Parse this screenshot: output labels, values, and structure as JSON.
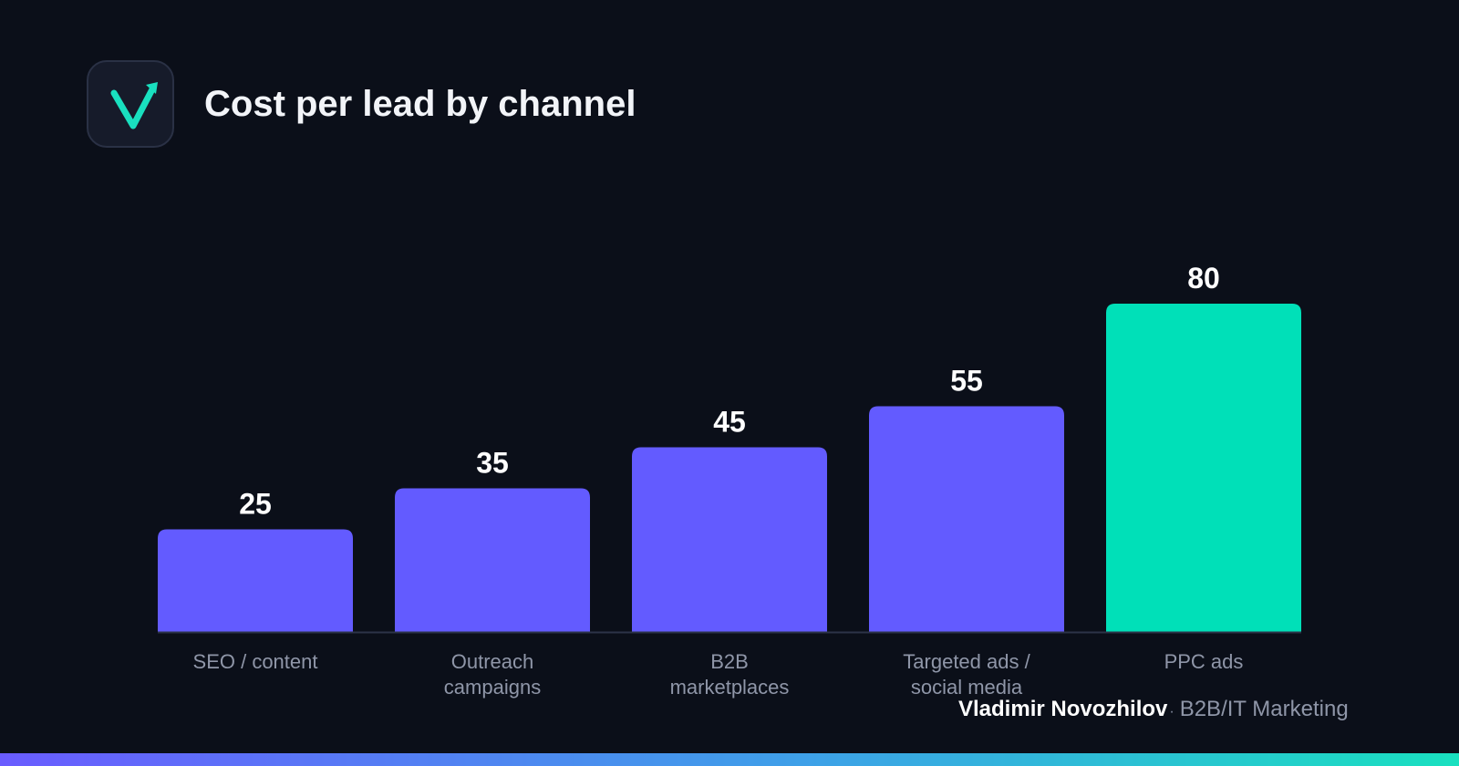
{
  "header": {
    "title": "Cost per lead by channel",
    "logo_icon": "checkmark-arrow-logo-icon"
  },
  "chart_data": {
    "type": "bar",
    "title": "Cost per lead by channel",
    "categories": [
      [
        "SEO / content"
      ],
      [
        "Outreach",
        "campaigns"
      ],
      [
        "B2B",
        "marketplaces"
      ],
      [
        "Targeted ads /",
        "social media"
      ],
      [
        "PPC ads"
      ]
    ],
    "values": [
      25,
      35,
      45,
      55,
      80
    ],
    "value_labels": [
      "25",
      "35",
      "45",
      "55",
      "80"
    ],
    "colors": [
      "#635bff",
      "#635bff",
      "#635bff",
      "#635bff",
      "#00e0b8"
    ],
    "ylim": [
      0,
      80
    ],
    "grid": false,
    "legend": "none"
  },
  "footer": {
    "author": "Vladimir Novozhilov",
    "separator": "·",
    "role": "B2B/IT Marketing"
  },
  "colors": {
    "background": "#0b0f19",
    "bar_primary": "#635bff",
    "bar_highlight": "#00e0b8",
    "accent": "#19e0bf"
  }
}
